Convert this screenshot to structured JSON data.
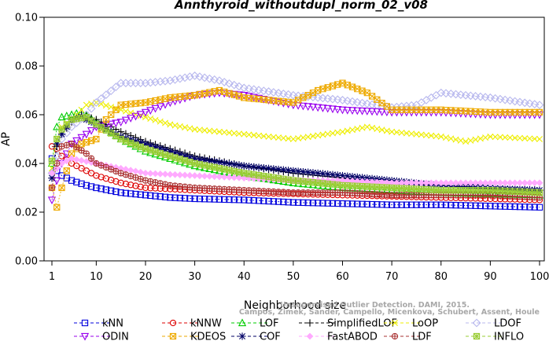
{
  "chart_data": {
    "type": "line",
    "title": "Annthyroid_withoutdupl_norm_02_v08",
    "xlabel": "Neighborhood size",
    "ylabel": "AP",
    "xlim": [
      1,
      100
    ],
    "ylim": [
      0.0,
      0.1
    ],
    "xticks": [
      1,
      10,
      20,
      30,
      40,
      50,
      60,
      70,
      80,
      90,
      100
    ],
    "xtick_labels": [
      "1",
      "10",
      "20",
      "30",
      "40",
      "50",
      "60",
      "70",
      "80",
      "90",
      "100"
    ],
    "yticks": [
      0.0,
      0.02,
      0.04,
      0.06,
      0.08,
      0.1
    ],
    "ytick_labels": [
      "0.00",
      "0.02",
      "0.04",
      "0.06",
      "0.08",
      "0.10"
    ],
    "grid": false,
    "legend_position": "bottom",
    "watermark": [
      "Campos, Zimek, Sander, Campello, Micenkova, Schubert, Assent, Houle",
      "Unsupervised Outlier Detection. DAMI, 2015."
    ],
    "series": [
      {
        "name": "kNN",
        "color": "#0000dd",
        "marker": "square",
        "points": [
          [
            1,
            0.042
          ],
          [
            2,
            0.037
          ],
          [
            3,
            0.035
          ],
          [
            5,
            0.033
          ],
          [
            8,
            0.031
          ],
          [
            10,
            0.03
          ],
          [
            15,
            0.028
          ],
          [
            20,
            0.027
          ],
          [
            25,
            0.026
          ],
          [
            30,
            0.0255
          ],
          [
            40,
            0.025
          ],
          [
            50,
            0.024
          ],
          [
            60,
            0.0235
          ],
          [
            70,
            0.023
          ],
          [
            80,
            0.023
          ],
          [
            90,
            0.0225
          ],
          [
            100,
            0.022
          ]
        ]
      },
      {
        "name": "kNNW",
        "color": "#dd0000",
        "marker": "circle",
        "points": [
          [
            1,
            0.047
          ],
          [
            2,
            0.046
          ],
          [
            3,
            0.043
          ],
          [
            5,
            0.04
          ],
          [
            8,
            0.037
          ],
          [
            10,
            0.035
          ],
          [
            15,
            0.032
          ],
          [
            20,
            0.03
          ],
          [
            25,
            0.0295
          ],
          [
            30,
            0.029
          ],
          [
            40,
            0.028
          ],
          [
            50,
            0.0275
          ],
          [
            60,
            0.027
          ],
          [
            70,
            0.0265
          ],
          [
            80,
            0.026
          ],
          [
            90,
            0.0255
          ],
          [
            100,
            0.025
          ]
        ]
      },
      {
        "name": "LOF",
        "color": "#00cc00",
        "marker": "triangle",
        "points": [
          [
            1,
            0.04
          ],
          [
            2,
            0.055
          ],
          [
            3,
            0.059
          ],
          [
            5,
            0.06
          ],
          [
            7,
            0.061
          ],
          [
            10,
            0.057
          ],
          [
            15,
            0.05
          ],
          [
            20,
            0.045
          ],
          [
            25,
            0.042
          ],
          [
            30,
            0.039
          ],
          [
            40,
            0.035
          ],
          [
            50,
            0.032
          ],
          [
            60,
            0.03
          ],
          [
            70,
            0.029
          ],
          [
            80,
            0.028
          ],
          [
            90,
            0.0275
          ],
          [
            100,
            0.027
          ]
        ]
      },
      {
        "name": "SimplifiedLOF",
        "color": "#000000",
        "marker": "plus",
        "points": [
          [
            1,
            0.034
          ],
          [
            2,
            0.047
          ],
          [
            3,
            0.052
          ],
          [
            5,
            0.057
          ],
          [
            7,
            0.06
          ],
          [
            10,
            0.058
          ],
          [
            15,
            0.053
          ],
          [
            20,
            0.049
          ],
          [
            25,
            0.046
          ],
          [
            30,
            0.043
          ],
          [
            40,
            0.039
          ],
          [
            50,
            0.036
          ],
          [
            60,
            0.034
          ],
          [
            70,
            0.032
          ],
          [
            80,
            0.031
          ],
          [
            90,
            0.03
          ],
          [
            100,
            0.029
          ]
        ]
      },
      {
        "name": "LoOP",
        "color": "#eeee00",
        "marker": "x",
        "points": [
          [
            1,
            0.038
          ],
          [
            2,
            0.05
          ],
          [
            3,
            0.055
          ],
          [
            5,
            0.058
          ],
          [
            8,
            0.064
          ],
          [
            10,
            0.065
          ],
          [
            15,
            0.062
          ],
          [
            20,
            0.059
          ],
          [
            25,
            0.056
          ],
          [
            30,
            0.054
          ],
          [
            40,
            0.052
          ],
          [
            50,
            0.05
          ],
          [
            60,
            0.053
          ],
          [
            65,
            0.055
          ],
          [
            70,
            0.053
          ],
          [
            80,
            0.051
          ],
          [
            85,
            0.049
          ],
          [
            90,
            0.051
          ],
          [
            100,
            0.05
          ]
        ]
      },
      {
        "name": "LDOF",
        "color": "#b8b8ee",
        "marker": "diamond",
        "points": [
          [
            1,
            0.036
          ],
          [
            3,
            0.05
          ],
          [
            5,
            0.055
          ],
          [
            8,
            0.06
          ],
          [
            10,
            0.065
          ],
          [
            15,
            0.073
          ],
          [
            20,
            0.073
          ],
          [
            25,
            0.074
          ],
          [
            30,
            0.076
          ],
          [
            35,
            0.074
          ],
          [
            40,
            0.071
          ],
          [
            50,
            0.068
          ],
          [
            60,
            0.066
          ],
          [
            70,
            0.063
          ],
          [
            75,
            0.064
          ],
          [
            80,
            0.069
          ],
          [
            90,
            0.067
          ],
          [
            100,
            0.064
          ]
        ]
      },
      {
        "name": "ODIN",
        "color": "#9900ee",
        "marker": "triangle-down",
        "points": [
          [
            1,
            0.025
          ],
          [
            2,
            0.033
          ],
          [
            3,
            0.04
          ],
          [
            5,
            0.048
          ],
          [
            8,
            0.052
          ],
          [
            10,
            0.055
          ],
          [
            15,
            0.057
          ],
          [
            20,
            0.061
          ],
          [
            25,
            0.065
          ],
          [
            30,
            0.068
          ],
          [
            35,
            0.069
          ],
          [
            40,
            0.068
          ],
          [
            50,
            0.064
          ],
          [
            60,
            0.062
          ],
          [
            70,
            0.061
          ],
          [
            80,
            0.061
          ],
          [
            90,
            0.06
          ],
          [
            100,
            0.06
          ]
        ]
      },
      {
        "name": "KDEOS",
        "color": "#eeaa00",
        "marker": "square-x",
        "points": [
          [
            1,
            0.03
          ],
          [
            2,
            0.022
          ],
          [
            3,
            0.03
          ],
          [
            5,
            0.044
          ],
          [
            7,
            0.048
          ],
          [
            10,
            0.05
          ],
          [
            12,
            0.058
          ],
          [
            15,
            0.064
          ],
          [
            20,
            0.065
          ],
          [
            25,
            0.067
          ],
          [
            30,
            0.068
          ],
          [
            35,
            0.07
          ],
          [
            40,
            0.067
          ],
          [
            45,
            0.066
          ],
          [
            50,
            0.065
          ],
          [
            55,
            0.07
          ],
          [
            60,
            0.073
          ],
          [
            65,
            0.069
          ],
          [
            70,
            0.062
          ],
          [
            80,
            0.062
          ],
          [
            90,
            0.061
          ],
          [
            100,
            0.061
          ]
        ]
      },
      {
        "name": "COF",
        "color": "#000066",
        "marker": "star",
        "points": [
          [
            1,
            0.034
          ],
          [
            2,
            0.048
          ],
          [
            3,
            0.052
          ],
          [
            5,
            0.058
          ],
          [
            7,
            0.059
          ],
          [
            10,
            0.056
          ],
          [
            15,
            0.051
          ],
          [
            20,
            0.048
          ],
          [
            25,
            0.045
          ],
          [
            30,
            0.042
          ],
          [
            40,
            0.039
          ],
          [
            50,
            0.037
          ],
          [
            60,
            0.035
          ],
          [
            70,
            0.033
          ],
          [
            80,
            0.031
          ],
          [
            90,
            0.03
          ],
          [
            100,
            0.029
          ]
        ]
      },
      {
        "name": "FastABOD",
        "color": "#ffaaff",
        "marker": "diamond-solid",
        "points": [
          [
            1,
            0.036
          ],
          [
            3,
            0.04
          ],
          [
            5,
            0.042
          ],
          [
            10,
            0.04
          ],
          [
            15,
            0.038
          ],
          [
            20,
            0.036
          ],
          [
            30,
            0.035
          ],
          [
            40,
            0.034
          ],
          [
            50,
            0.033
          ],
          [
            60,
            0.033
          ],
          [
            70,
            0.032
          ],
          [
            80,
            0.032
          ],
          [
            90,
            0.032
          ],
          [
            100,
            0.032
          ]
        ]
      },
      {
        "name": "LDF",
        "color": "#aa3333",
        "marker": "circle-plus",
        "points": [
          [
            1,
            0.03
          ],
          [
            2,
            0.04
          ],
          [
            3,
            0.047
          ],
          [
            5,
            0.048
          ],
          [
            8,
            0.044
          ],
          [
            10,
            0.04
          ],
          [
            15,
            0.036
          ],
          [
            20,
            0.033
          ],
          [
            25,
            0.031
          ],
          [
            30,
            0.03
          ],
          [
            40,
            0.029
          ],
          [
            50,
            0.028
          ],
          [
            60,
            0.028
          ],
          [
            70,
            0.027
          ],
          [
            80,
            0.027
          ],
          [
            90,
            0.027
          ],
          [
            100,
            0.026
          ]
        ]
      },
      {
        "name": "INFLO",
        "color": "#99cc33",
        "marker": "square-star",
        "points": [
          [
            1,
            0.041
          ],
          [
            2,
            0.05
          ],
          [
            3,
            0.054
          ],
          [
            5,
            0.058
          ],
          [
            8,
            0.059
          ],
          [
            10,
            0.056
          ],
          [
            15,
            0.05
          ],
          [
            20,
            0.046
          ],
          [
            25,
            0.043
          ],
          [
            30,
            0.04
          ],
          [
            40,
            0.036
          ],
          [
            50,
            0.033
          ],
          [
            60,
            0.031
          ],
          [
            70,
            0.03
          ],
          [
            80,
            0.029
          ],
          [
            90,
            0.029
          ],
          [
            100,
            0.028
          ]
        ]
      }
    ],
    "legend_order": [
      "kNN",
      "kNNW",
      "LOF",
      "SimplifiedLOF",
      "LoOP",
      "LDOF",
      "ODIN",
      "KDEOS",
      "COF",
      "FastABOD",
      "LDF",
      "INFLO"
    ]
  }
}
